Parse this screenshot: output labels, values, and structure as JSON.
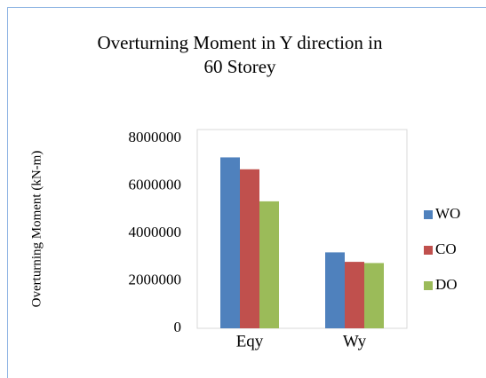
{
  "chart_data": {
    "type": "bar",
    "title": [
      "Overturning Moment in Y direction in",
      "60 Storey"
    ],
    "ylabel": "Overturning Moment (kN-m)",
    "categories": [
      "Eqy",
      "Wy"
    ],
    "series": [
      {
        "name": "WO",
        "color": "#4f81bd",
        "values": [
          7200000,
          3200000
        ]
      },
      {
        "name": "CO",
        "color": "#c0504d",
        "values": [
          6700000,
          2800000
        ]
      },
      {
        "name": "DO",
        "color": "#9bbb59",
        "values": [
          5350000,
          2750000
        ]
      }
    ],
    "ylim": [
      0,
      8000000
    ],
    "yticks": [
      0,
      2000000,
      4000000,
      6000000,
      8000000
    ],
    "grid": false,
    "legend": "right"
  }
}
